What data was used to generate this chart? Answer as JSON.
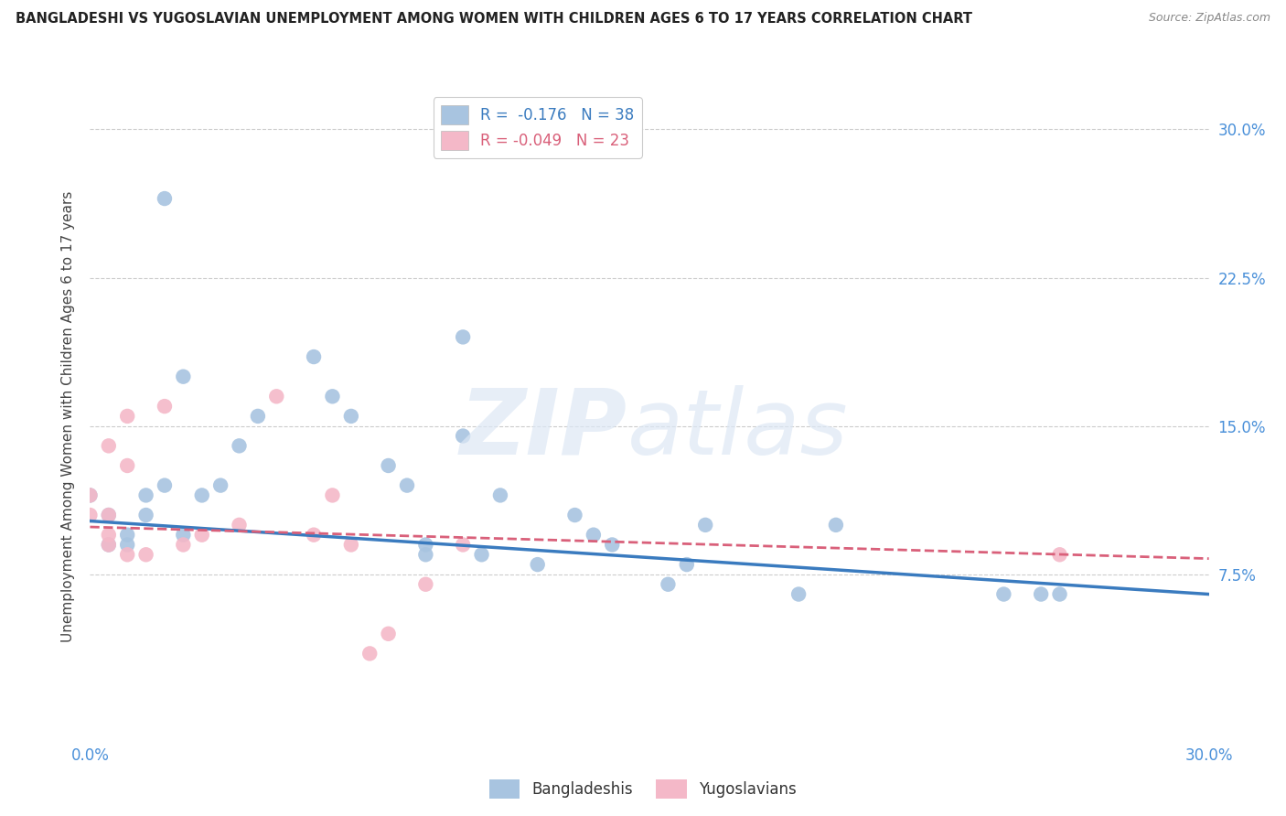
{
  "title": "BANGLADESHI VS YUGOSLAVIAN UNEMPLOYMENT AMONG WOMEN WITH CHILDREN AGES 6 TO 17 YEARS CORRELATION CHART",
  "source": "Source: ZipAtlas.com",
  "ylabel": "Unemployment Among Women with Children Ages 6 to 17 years",
  "xlim": [
    0.0,
    0.3
  ],
  "ylim": [
    -0.01,
    0.32
  ],
  "plot_ylim": [
    0.0,
    0.3
  ],
  "ytick_vals": [
    0.075,
    0.15,
    0.225,
    0.3
  ],
  "xtick_vals": [
    0.0,
    0.3
  ],
  "bangladeshi_R": "-0.176",
  "bangladeshi_N": "38",
  "yugoslavian_R": "-0.049",
  "yugoslavian_N": "23",
  "bangladeshi_color": "#a8c4e0",
  "yugoslavian_color": "#f4b8c8",
  "bangladeshi_line_color": "#3a7bbf",
  "yugoslavian_line_color": "#d9607a",
  "background_color": "#ffffff",
  "grid_color": "#cccccc",
  "bangladeshi_x": [
    0.02,
    0.025,
    0.0,
    0.005,
    0.005,
    0.01,
    0.01,
    0.015,
    0.015,
    0.02,
    0.025,
    0.03,
    0.035,
    0.04,
    0.045,
    0.06,
    0.065,
    0.07,
    0.08,
    0.085,
    0.09,
    0.09,
    0.1,
    0.1,
    0.105,
    0.11,
    0.12,
    0.13,
    0.135,
    0.14,
    0.155,
    0.16,
    0.165,
    0.19,
    0.2,
    0.245,
    0.255,
    0.26
  ],
  "bangladeshi_y": [
    0.265,
    0.175,
    0.115,
    0.105,
    0.09,
    0.095,
    0.09,
    0.115,
    0.105,
    0.12,
    0.095,
    0.115,
    0.12,
    0.14,
    0.155,
    0.185,
    0.165,
    0.155,
    0.13,
    0.12,
    0.09,
    0.085,
    0.195,
    0.145,
    0.085,
    0.115,
    0.08,
    0.105,
    0.095,
    0.09,
    0.07,
    0.08,
    0.1,
    0.065,
    0.1,
    0.065,
    0.065,
    0.065
  ],
  "yugoslavian_x": [
    0.0,
    0.0,
    0.005,
    0.005,
    0.005,
    0.005,
    0.01,
    0.01,
    0.01,
    0.015,
    0.02,
    0.025,
    0.03,
    0.04,
    0.05,
    0.06,
    0.065,
    0.07,
    0.075,
    0.08,
    0.09,
    0.1,
    0.26
  ],
  "yugoslavian_y": [
    0.115,
    0.105,
    0.14,
    0.105,
    0.095,
    0.09,
    0.155,
    0.13,
    0.085,
    0.085,
    0.16,
    0.09,
    0.095,
    0.1,
    0.165,
    0.095,
    0.115,
    0.09,
    0.035,
    0.045,
    0.07,
    0.09,
    0.085
  ],
  "blue_line_x0": 0.0,
  "blue_line_y0": 0.102,
  "blue_line_x1": 0.3,
  "blue_line_y1": 0.065,
  "pink_line_x0": 0.0,
  "pink_line_y0": 0.099,
  "pink_line_x1": 0.3,
  "pink_line_y1": 0.083
}
